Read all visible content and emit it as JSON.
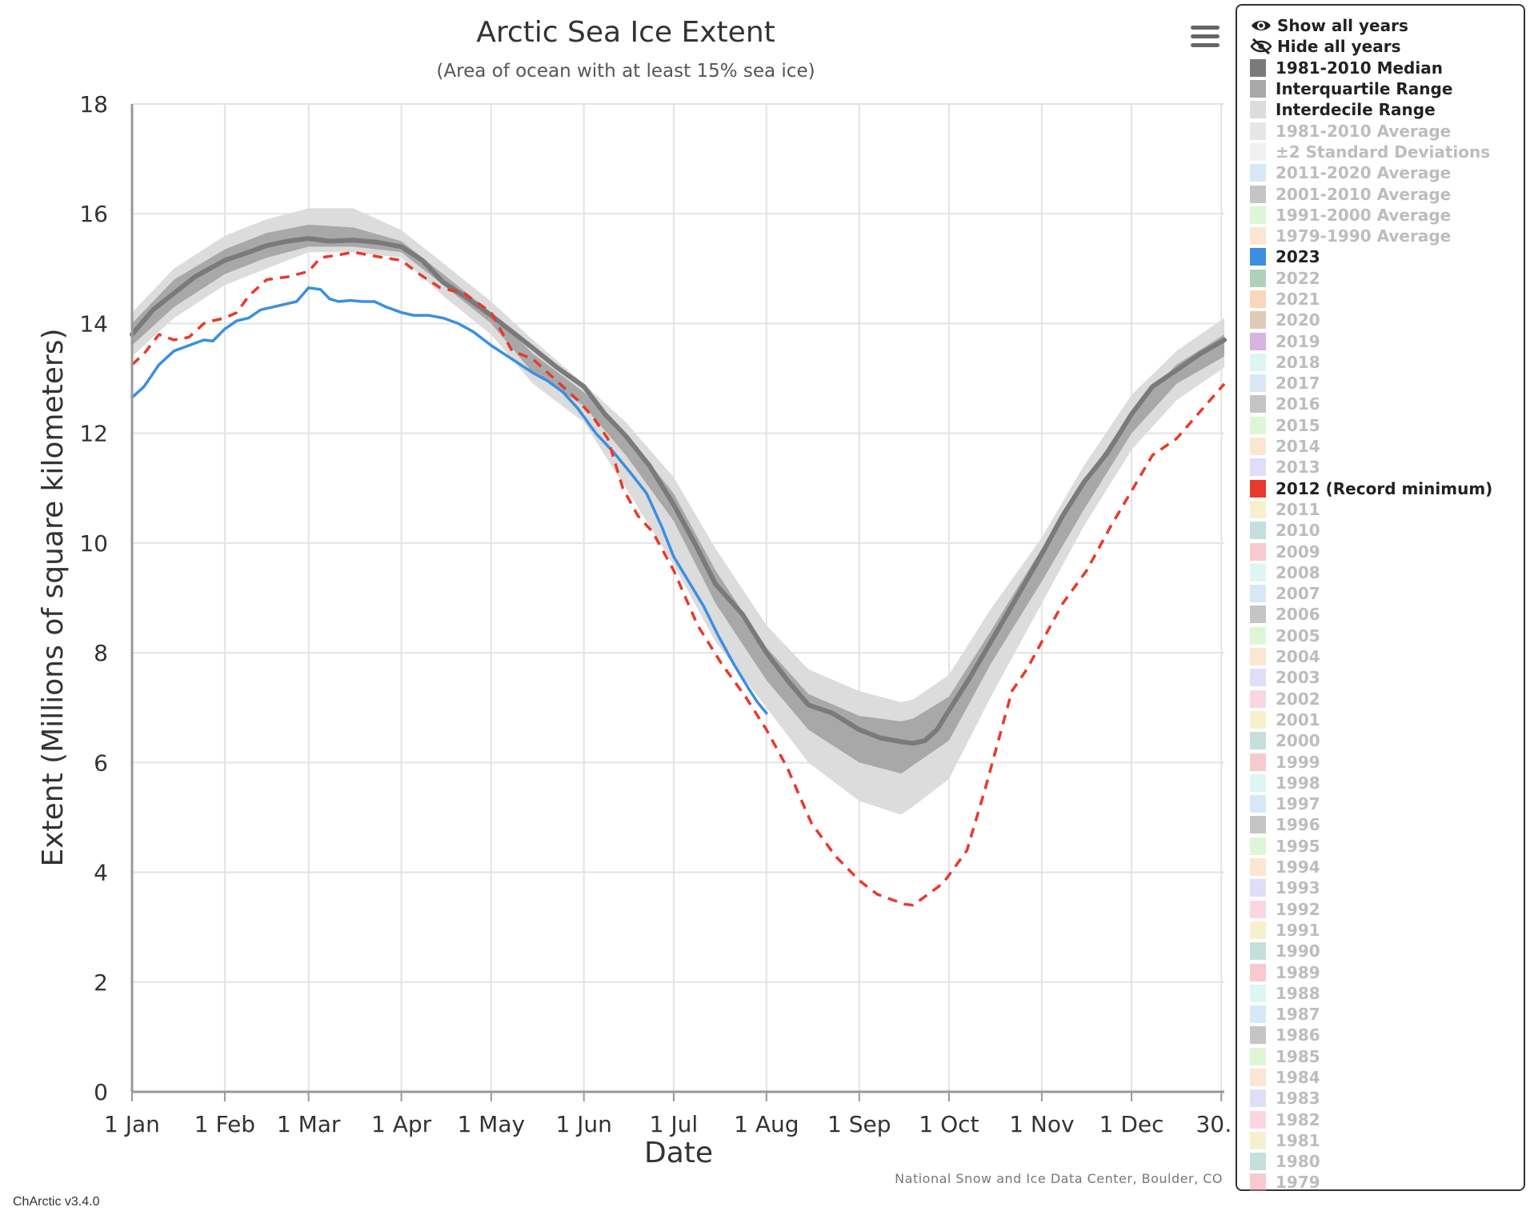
{
  "chart_data": {
    "type": "line",
    "title": "Arctic Sea Ice Extent",
    "subtitle": "(Area of ocean with at least 15% sea ice)",
    "xlabel": "Date",
    "ylabel": "Extent (Millions of square kilometers)",
    "ylim": [
      0,
      18
    ],
    "xlim_day": [
      1,
      366
    ],
    "y_ticks": [
      0,
      2,
      4,
      6,
      8,
      10,
      12,
      14,
      16,
      18
    ],
    "x_ticks": [
      {
        "day": 1,
        "label": "1 Jan"
      },
      {
        "day": 32,
        "label": "1 Feb"
      },
      {
        "day": 60,
        "label": "1 Mar"
      },
      {
        "day": 91,
        "label": "1 Apr"
      },
      {
        "day": 121,
        "label": "1 May"
      },
      {
        "day": 152,
        "label": "1 Jun"
      },
      {
        "day": 182,
        "label": "1 Jul"
      },
      {
        "day": 213,
        "label": "1 Aug"
      },
      {
        "day": 244,
        "label": "1 Sep"
      },
      {
        "day": 274,
        "label": "1 Oct"
      },
      {
        "day": 305,
        "label": "1 Nov"
      },
      {
        "day": 335,
        "label": "1 Dec"
      },
      {
        "day": 365,
        "label": "30…"
      }
    ],
    "grid": true,
    "legend_position": "right",
    "bands": [
      {
        "name": "Interdecile Range",
        "color": "#dcdcdc",
        "days": [
          1,
          15,
          32,
          46,
          60,
          75,
          91,
          105,
          121,
          135,
          152,
          166,
          182,
          196,
          213,
          227,
          244,
          258,
          262,
          274,
          288,
          305,
          319,
          335,
          350,
          366
        ],
        "lower": [
          13.4,
          14.1,
          14.7,
          15.0,
          15.3,
          15.3,
          15.2,
          14.5,
          13.8,
          12.9,
          12.2,
          11.0,
          9.6,
          8.2,
          7.0,
          6.0,
          5.3,
          5.05,
          5.2,
          5.7,
          7.2,
          8.9,
          10.3,
          11.7,
          12.6,
          13.2
        ],
        "upper": [
          14.2,
          15.0,
          15.6,
          15.9,
          16.1,
          16.1,
          15.7,
          15.1,
          14.4,
          13.7,
          12.9,
          12.2,
          11.2,
          9.9,
          8.5,
          7.7,
          7.3,
          7.1,
          7.15,
          7.6,
          8.8,
          10.1,
          11.4,
          12.7,
          13.5,
          14.1
        ]
      },
      {
        "name": "Interquartile Range",
        "color": "#a8a8a8",
        "days": [
          1,
          15,
          32,
          46,
          60,
          75,
          91,
          105,
          121,
          135,
          152,
          166,
          182,
          196,
          213,
          227,
          244,
          258,
          262,
          274,
          288,
          305,
          319,
          335,
          350,
          366
        ],
        "lower": [
          13.6,
          14.3,
          14.9,
          15.2,
          15.4,
          15.4,
          15.3,
          14.7,
          14.0,
          13.1,
          12.5,
          11.6,
          10.4,
          8.9,
          7.5,
          6.6,
          6.0,
          5.8,
          5.95,
          6.4,
          7.8,
          9.3,
          10.6,
          12.0,
          12.9,
          13.4
        ],
        "upper": [
          14.0,
          14.8,
          15.35,
          15.65,
          15.8,
          15.75,
          15.5,
          14.9,
          14.2,
          13.45,
          12.75,
          12.0,
          10.9,
          9.5,
          8.1,
          7.25,
          6.85,
          6.75,
          6.8,
          7.2,
          8.4,
          9.9,
          11.1,
          12.4,
          13.25,
          13.8
        ]
      }
    ],
    "series": [
      {
        "name": "1981-2010 Median",
        "color": "#7a7a7a",
        "style": "solid",
        "days": [
          1,
          8,
          15,
          22,
          32,
          40,
          46,
          53,
          60,
          67,
          75,
          83,
          91,
          98,
          105,
          112,
          121,
          128,
          135,
          143,
          152,
          159,
          166,
          174,
          182,
          189,
          196,
          205,
          213,
          220,
          227,
          235,
          244,
          251,
          258,
          262,
          266,
          270,
          274,
          281,
          288,
          296,
          305,
          312,
          319,
          327,
          335,
          342,
          350,
          358,
          366
        ],
        "values": [
          13.8,
          14.25,
          14.55,
          14.85,
          15.15,
          15.3,
          15.42,
          15.5,
          15.55,
          15.5,
          15.52,
          15.48,
          15.4,
          15.15,
          14.75,
          14.5,
          14.15,
          13.85,
          13.55,
          13.2,
          12.85,
          12.35,
          11.95,
          11.4,
          10.7,
          10.0,
          9.25,
          8.7,
          8.0,
          7.5,
          7.05,
          6.9,
          6.6,
          6.45,
          6.38,
          6.35,
          6.4,
          6.6,
          6.95,
          7.55,
          8.2,
          8.95,
          9.8,
          10.5,
          11.1,
          11.65,
          12.35,
          12.85,
          13.15,
          13.45,
          13.7
        ]
      },
      {
        "name": "2023",
        "color": "#3b8fe0",
        "style": "solid",
        "days": [
          1,
          5,
          10,
          15,
          20,
          25,
          28,
          32,
          36,
          40,
          44,
          48,
          52,
          56,
          60,
          64,
          67,
          70,
          74,
          78,
          82,
          86,
          91,
          95,
          100,
          105,
          110,
          115,
          121,
          128,
          135,
          140,
          145,
          150,
          156,
          162,
          168,
          173,
          178,
          182,
          187,
          192,
          197,
          202,
          207,
          210,
          213
        ],
        "values": [
          12.65,
          12.85,
          13.25,
          13.5,
          13.6,
          13.7,
          13.68,
          13.9,
          14.05,
          14.1,
          14.25,
          14.3,
          14.35,
          14.4,
          14.65,
          14.62,
          14.45,
          14.4,
          14.42,
          14.4,
          14.4,
          14.3,
          14.2,
          14.15,
          14.15,
          14.1,
          14.0,
          13.85,
          13.6,
          13.35,
          13.1,
          12.95,
          12.75,
          12.45,
          12.0,
          11.65,
          11.25,
          10.9,
          10.3,
          9.75,
          9.3,
          8.85,
          8.3,
          7.8,
          7.35,
          7.1,
          6.9
        ]
      },
      {
        "name": "2012 (Record minimum)",
        "color": "#e8392b",
        "style": "dashed",
        "days": [
          1,
          5,
          10,
          15,
          20,
          25,
          28,
          32,
          36,
          40,
          46,
          53,
          60,
          64,
          70,
          75,
          80,
          85,
          91,
          97,
          104,
          112,
          121,
          128,
          135,
          142,
          150,
          155,
          160,
          165,
          170,
          175,
          182,
          190,
          198,
          206,
          213,
          220,
          228,
          236,
          244,
          250,
          255,
          259,
          262,
          267,
          272,
          280,
          286,
          290,
          295,
          300,
          305,
          312,
          320,
          328,
          335,
          342,
          350,
          358,
          366
        ],
        "values": [
          13.25,
          13.45,
          13.8,
          13.7,
          13.75,
          14.0,
          14.05,
          14.1,
          14.2,
          14.5,
          14.8,
          14.85,
          14.95,
          15.2,
          15.25,
          15.3,
          15.25,
          15.2,
          15.15,
          14.9,
          14.65,
          14.55,
          14.2,
          13.5,
          13.35,
          13.0,
          12.6,
          12.3,
          11.9,
          11.0,
          10.5,
          10.2,
          9.5,
          8.5,
          7.8,
          7.2,
          6.6,
          5.9,
          4.9,
          4.3,
          3.85,
          3.6,
          3.5,
          3.42,
          3.4,
          3.6,
          3.8,
          4.4,
          5.5,
          6.3,
          7.3,
          7.7,
          8.2,
          8.9,
          9.5,
          10.3,
          10.95,
          11.6,
          11.9,
          12.4,
          12.9
        ]
      }
    ],
    "colors": {
      "interdecile": "#dcdcdc",
      "interquartile": "#a8a8a8",
      "median": "#7a7a7a",
      "y2023": "#3b8fe0",
      "y2012": "#e8392b"
    }
  },
  "source_credit": "National Snow and Ice Data Center, Boulder, CO",
  "version": "ChArctic v3.4.0",
  "menu_icon": "hamburger-menu-icon",
  "legend": {
    "controls": [
      {
        "label": "Show all years",
        "icon": "eye-icon"
      },
      {
        "label": "Hide all years",
        "icon": "eye-slash-icon"
      }
    ],
    "items": [
      {
        "label": "1981-2010 Median",
        "color": "#7a7a7a",
        "active": true
      },
      {
        "label": "Interquartile Range",
        "color": "#a8a8a8",
        "active": true
      },
      {
        "label": "Interdecile Range",
        "color": "#dcdcdc",
        "active": true
      },
      {
        "label": "1981-2010 Average",
        "color": "#c8c8c8",
        "active": false
      },
      {
        "label": "±2 Standard Deviations",
        "color": "#dddddd",
        "active": false
      },
      {
        "label": "2011-2020 Average",
        "color": "#a9c9ef",
        "active": false
      },
      {
        "label": "2001-2010 Average",
        "color": "#7e7e7e",
        "active": false
      },
      {
        "label": "1991-2000 Average",
        "color": "#b9e8a8",
        "active": false
      },
      {
        "label": "1979-1990 Average",
        "color": "#f3c79b",
        "active": false
      },
      {
        "label": "2023",
        "color": "#3b8fe0",
        "active": true
      },
      {
        "label": "2022",
        "color": "#4e9a6a",
        "active": false
      },
      {
        "label": "2021",
        "color": "#f4a46a",
        "active": false
      },
      {
        "label": "2020",
        "color": "#b88a5e",
        "active": false
      },
      {
        "label": "2019",
        "color": "#a45ac0",
        "active": false
      },
      {
        "label": "2018",
        "color": "#b3ece6",
        "active": false
      },
      {
        "label": "2017",
        "color": "#a9c9ef",
        "active": false
      },
      {
        "label": "2016",
        "color": "#7e7e7e",
        "active": false
      },
      {
        "label": "2015",
        "color": "#b9e8a8",
        "active": false
      },
      {
        "label": "2014",
        "color": "#f3c79b",
        "active": false
      },
      {
        "label": "2013",
        "color": "#b9b3ef",
        "active": false
      },
      {
        "label": "2012 (Record minimum)",
        "color": "#e8392b",
        "active": true
      },
      {
        "label": "2011",
        "color": "#ebdd94",
        "active": false
      },
      {
        "label": "2010",
        "color": "#7fb8ac",
        "active": false
      },
      {
        "label": "2009",
        "color": "#f08a94",
        "active": false
      },
      {
        "label": "2008",
        "color": "#b3ece6",
        "active": false
      },
      {
        "label": "2007",
        "color": "#a9c9ef",
        "active": false
      },
      {
        "label": "2006",
        "color": "#7e7e7e",
        "active": false
      },
      {
        "label": "2005",
        "color": "#b9e8a8",
        "active": false
      },
      {
        "label": "2004",
        "color": "#f3c79b",
        "active": false
      },
      {
        "label": "2003",
        "color": "#b9b3ef",
        "active": false
      },
      {
        "label": "2002",
        "color": "#f3a3bd",
        "active": false
      },
      {
        "label": "2001",
        "color": "#ebdd94",
        "active": false
      },
      {
        "label": "2000",
        "color": "#7fb8ac",
        "active": false
      },
      {
        "label": "1999",
        "color": "#f08a94",
        "active": false
      },
      {
        "label": "1998",
        "color": "#b3ece6",
        "active": false
      },
      {
        "label": "1997",
        "color": "#a9c9ef",
        "active": false
      },
      {
        "label": "1996",
        "color": "#7e7e7e",
        "active": false
      },
      {
        "label": "1995",
        "color": "#b9e8a8",
        "active": false
      },
      {
        "label": "1994",
        "color": "#f3c79b",
        "active": false
      },
      {
        "label": "1993",
        "color": "#b9b3ef",
        "active": false
      },
      {
        "label": "1992",
        "color": "#f3a3bd",
        "active": false
      },
      {
        "label": "1991",
        "color": "#ebdd94",
        "active": false
      },
      {
        "label": "1990",
        "color": "#7fb8ac",
        "active": false
      },
      {
        "label": "1989",
        "color": "#f08a94",
        "active": false
      },
      {
        "label": "1988",
        "color": "#b3ece6",
        "active": false
      },
      {
        "label": "1987",
        "color": "#a9c9ef",
        "active": false
      },
      {
        "label": "1986",
        "color": "#7e7e7e",
        "active": false
      },
      {
        "label": "1985",
        "color": "#b9e8a8",
        "active": false
      },
      {
        "label": "1984",
        "color": "#f3c79b",
        "active": false
      },
      {
        "label": "1983",
        "color": "#b9b3ef",
        "active": false
      },
      {
        "label": "1982",
        "color": "#f3a3bd",
        "active": false
      },
      {
        "label": "1981",
        "color": "#ebdd94",
        "active": false
      },
      {
        "label": "1980",
        "color": "#7fb8ac",
        "active": false
      },
      {
        "label": "1979",
        "color": "#f08a94",
        "active": false
      }
    ]
  }
}
